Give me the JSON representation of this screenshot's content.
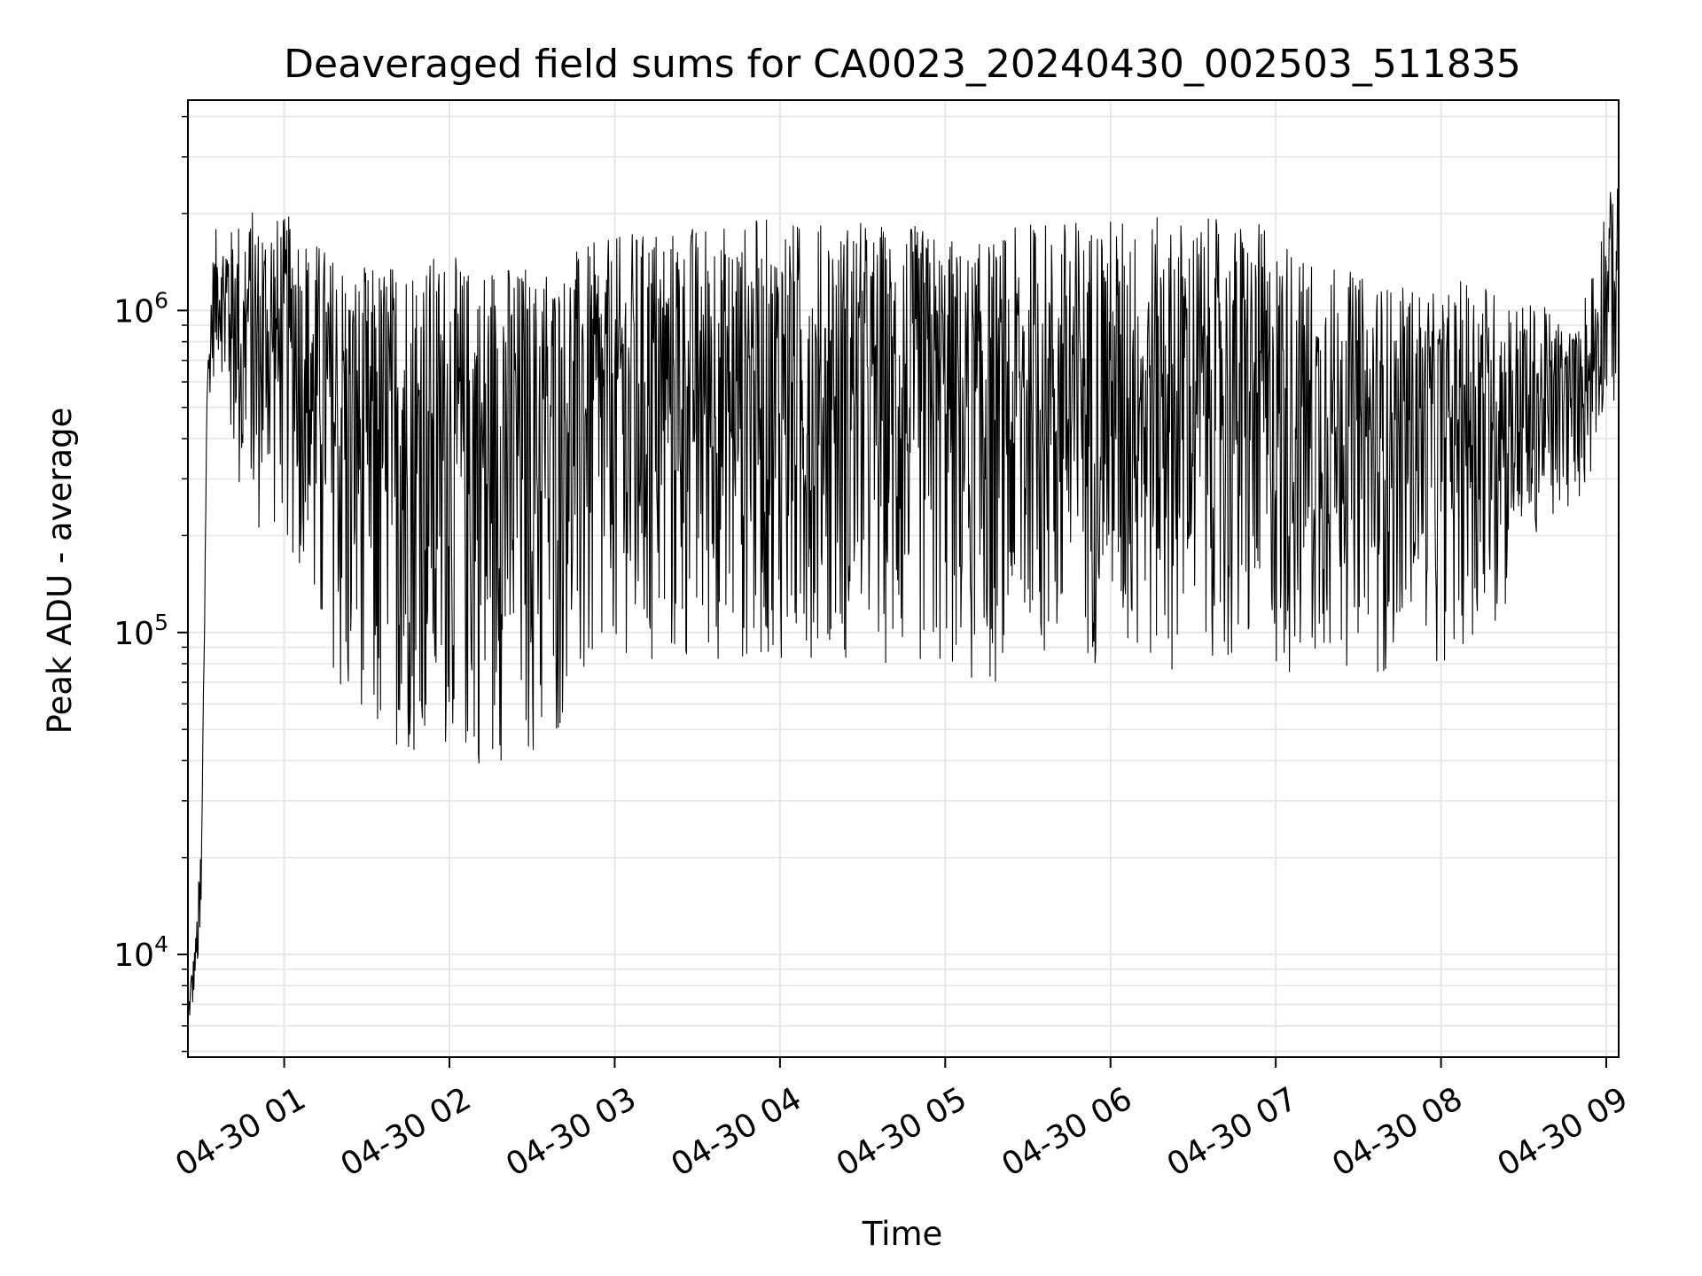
{
  "chart_data": {
    "type": "line",
    "title": "Deaveraged field sums for CA0023_20240430_002503_511835",
    "xlabel": "Time",
    "ylabel": "Peak ADU - average",
    "y_scale": "log",
    "ylim": [
      4800,
      4500000
    ],
    "xlim": [
      "2024-04-30 00:25:03",
      "2024-04-30 09:04:30"
    ],
    "grid": true,
    "line_color": "#000000",
    "grid_color": "#e6e6e6",
    "x_ticks": [
      {
        "t": "2024-04-30 01:00",
        "label": "04-30 01"
      },
      {
        "t": "2024-04-30 02:00",
        "label": "04-30 02"
      },
      {
        "t": "2024-04-30 03:00",
        "label": "04-30 03"
      },
      {
        "t": "2024-04-30 04:00",
        "label": "04-30 04"
      },
      {
        "t": "2024-04-30 05:00",
        "label": "04-30 05"
      },
      {
        "t": "2024-04-30 06:00",
        "label": "04-30 06"
      },
      {
        "t": "2024-04-30 07:00",
        "label": "04-30 07"
      },
      {
        "t": "2024-04-30 08:00",
        "label": "04-30 08"
      },
      {
        "t": "2024-04-30 09:00",
        "label": "04-30 09"
      }
    ],
    "y_ticks": [
      {
        "value": 10000,
        "base": "10",
        "exp": "4"
      },
      {
        "value": 100000,
        "base": "10",
        "exp": "5"
      },
      {
        "value": 1000000,
        "base": "10",
        "exp": "6"
      }
    ],
    "envelope": {
      "time": [
        "00:25",
        "00:28",
        "00:30",
        "00:32",
        "00:34",
        "00:36",
        "00:40",
        "00:45",
        "00:50",
        "01:00",
        "01:05",
        "01:10",
        "01:15",
        "01:20",
        "01:30",
        "01:40",
        "01:50",
        "02:00",
        "02:10",
        "02:20",
        "02:30",
        "02:40",
        "02:50",
        "03:00",
        "03:10",
        "03:20",
        "03:30",
        "04:00",
        "04:30",
        "05:00",
        "05:10",
        "05:20",
        "05:30",
        "06:00",
        "06:30",
        "06:50",
        "07:00",
        "07:10",
        "07:20",
        "07:30",
        "07:40",
        "07:50",
        "08:00",
        "08:10",
        "08:20",
        "08:30",
        "08:40",
        "08:45",
        "08:50",
        "08:55",
        "09:00",
        "09:04"
      ],
      "max": [
        7000,
        12000,
        25000,
        600000,
        1500000,
        2000000,
        1800000,
        2000000,
        2100000,
        2000000,
        1900000,
        1700000,
        1600000,
        1500000,
        1400000,
        1500000,
        1500000,
        1500000,
        1400000,
        1500000,
        1400000,
        1500000,
        1600000,
        1700000,
        1800000,
        1900000,
        1900000,
        1950000,
        1900000,
        1800000,
        1600000,
        1700000,
        1900000,
        1950000,
        1950000,
        1900000,
        1800000,
        1500000,
        1400000,
        1300000,
        1200000,
        1200000,
        1100000,
        1300000,
        1200000,
        1100000,
        1000000,
        900000,
        900000,
        1500000,
        2300000,
        2500000
      ],
      "min": [
        6000,
        7000,
        9000,
        500000,
        600000,
        700000,
        400000,
        200000,
        200000,
        200000,
        150000,
        100000,
        70000,
        55000,
        40000,
        38000,
        40000,
        40000,
        38000,
        40000,
        40000,
        45000,
        60000,
        70000,
        70000,
        75000,
        80000,
        80000,
        80000,
        75000,
        65000,
        65000,
        80000,
        80000,
        75000,
        70000,
        70000,
        75000,
        80000,
        75000,
        75000,
        80000,
        80000,
        90000,
        100000,
        150000,
        200000,
        220000,
        250000,
        300000,
        500000,
        450000
      ]
    }
  }
}
